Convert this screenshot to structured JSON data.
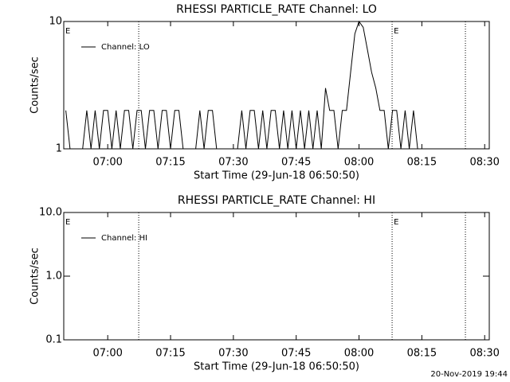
{
  "chart_data": [
    {
      "type": "line",
      "title": "RHESSI PARTICLE_RATE Channel: LO",
      "xlabel": "Start Time (29-Jun-18 06:50:50)",
      "ylabel": "Counts/sec",
      "xlim": [
        409.5,
        511.1
      ],
      "xticks": [
        {
          "value": 420,
          "label": "07:00"
        },
        {
          "value": 435,
          "label": "07:15"
        },
        {
          "value": 450,
          "label": "07:30"
        },
        {
          "value": 465,
          "label": "07:45"
        },
        {
          "value": 480,
          "label": "08:00"
        },
        {
          "value": 495,
          "label": "08:15"
        },
        {
          "value": 510,
          "label": "08:30"
        }
      ],
      "ylim": [
        1,
        10
      ],
      "yticks": [
        1,
        10
      ],
      "log_y": true,
      "series": [
        {
          "name": "Channel: LO",
          "color": "#000000",
          "x": [
            410,
            411,
            412,
            413,
            414,
            415,
            416,
            417,
            418,
            419,
            420,
            421,
            422,
            423,
            424,
            425,
            426,
            427,
            428,
            429,
            430,
            431,
            432,
            433,
            434,
            435,
            436,
            437,
            438,
            439,
            440,
            441,
            442,
            443,
            444,
            445,
            446,
            447,
            448,
            449,
            450,
            451,
            452,
            453,
            454,
            455,
            456,
            457,
            458,
            459,
            460,
            461,
            462,
            463,
            464,
            465,
            466,
            467,
            468,
            469,
            470,
            471,
            472,
            473,
            474,
            475,
            476,
            477,
            478,
            479,
            480,
            481,
            482,
            483,
            484,
            485,
            486,
            487,
            488,
            489,
            490,
            491,
            492,
            493,
            494,
            495
          ],
          "values": [
            2,
            1,
            1,
            1,
            1,
            2,
            1,
            2,
            1,
            2,
            2,
            1,
            2,
            1,
            2,
            2,
            1,
            2,
            2,
            1,
            2,
            2,
            1,
            2,
            2,
            1,
            2,
            2,
            1,
            1,
            1,
            1,
            2,
            1,
            2,
            2,
            1,
            1,
            1,
            1,
            1,
            1,
            2,
            1,
            2,
            2,
            1,
            2,
            1,
            2,
            2,
            1,
            2,
            1,
            2,
            1,
            2,
            1,
            2,
            1,
            2,
            1,
            3,
            2,
            2,
            1,
            2,
            2,
            4,
            8,
            10,
            9,
            6,
            4,
            3,
            2,
            2,
            1,
            2,
            2,
            1,
            2,
            1,
            2,
            1,
            1
          ]
        }
      ],
      "vlines": [
        427.4,
        487.9,
        505.4
      ],
      "annotations": [
        {
          "text": "E",
          "x": 409.5
        },
        {
          "text": "E",
          "x": 487.9
        }
      ]
    },
    {
      "type": "line",
      "title": "RHESSI PARTICLE_RATE Channel: HI",
      "xlabel": "Start Time (29-Jun-18 06:50:50)",
      "ylabel": "Counts/sec",
      "xlim": [
        409.5,
        511.1
      ],
      "xticks": [
        {
          "value": 420,
          "label": "07:00"
        },
        {
          "value": 435,
          "label": "07:15"
        },
        {
          "value": 450,
          "label": "07:30"
        },
        {
          "value": 465,
          "label": "07:45"
        },
        {
          "value": 480,
          "label": "08:00"
        },
        {
          "value": 495,
          "label": "08:15"
        },
        {
          "value": 510,
          "label": "08:30"
        }
      ],
      "ylim": [
        0.1,
        10
      ],
      "yticks": [
        0.1,
        {
          "value": 1,
          "label": "1.0"
        },
        {
          "value": 10,
          "label": "10.0"
        }
      ],
      "log_y": true,
      "series": [
        {
          "name": "Channel: HI",
          "color": "#000000",
          "x": [],
          "values": []
        }
      ],
      "vlines": [
        427.4,
        487.9,
        505.4
      ],
      "annotations": [
        {
          "text": "E",
          "x": 409.5
        },
        {
          "text": "E",
          "x": 487.9
        }
      ]
    }
  ],
  "footer": "20-Nov-2019 19:44"
}
